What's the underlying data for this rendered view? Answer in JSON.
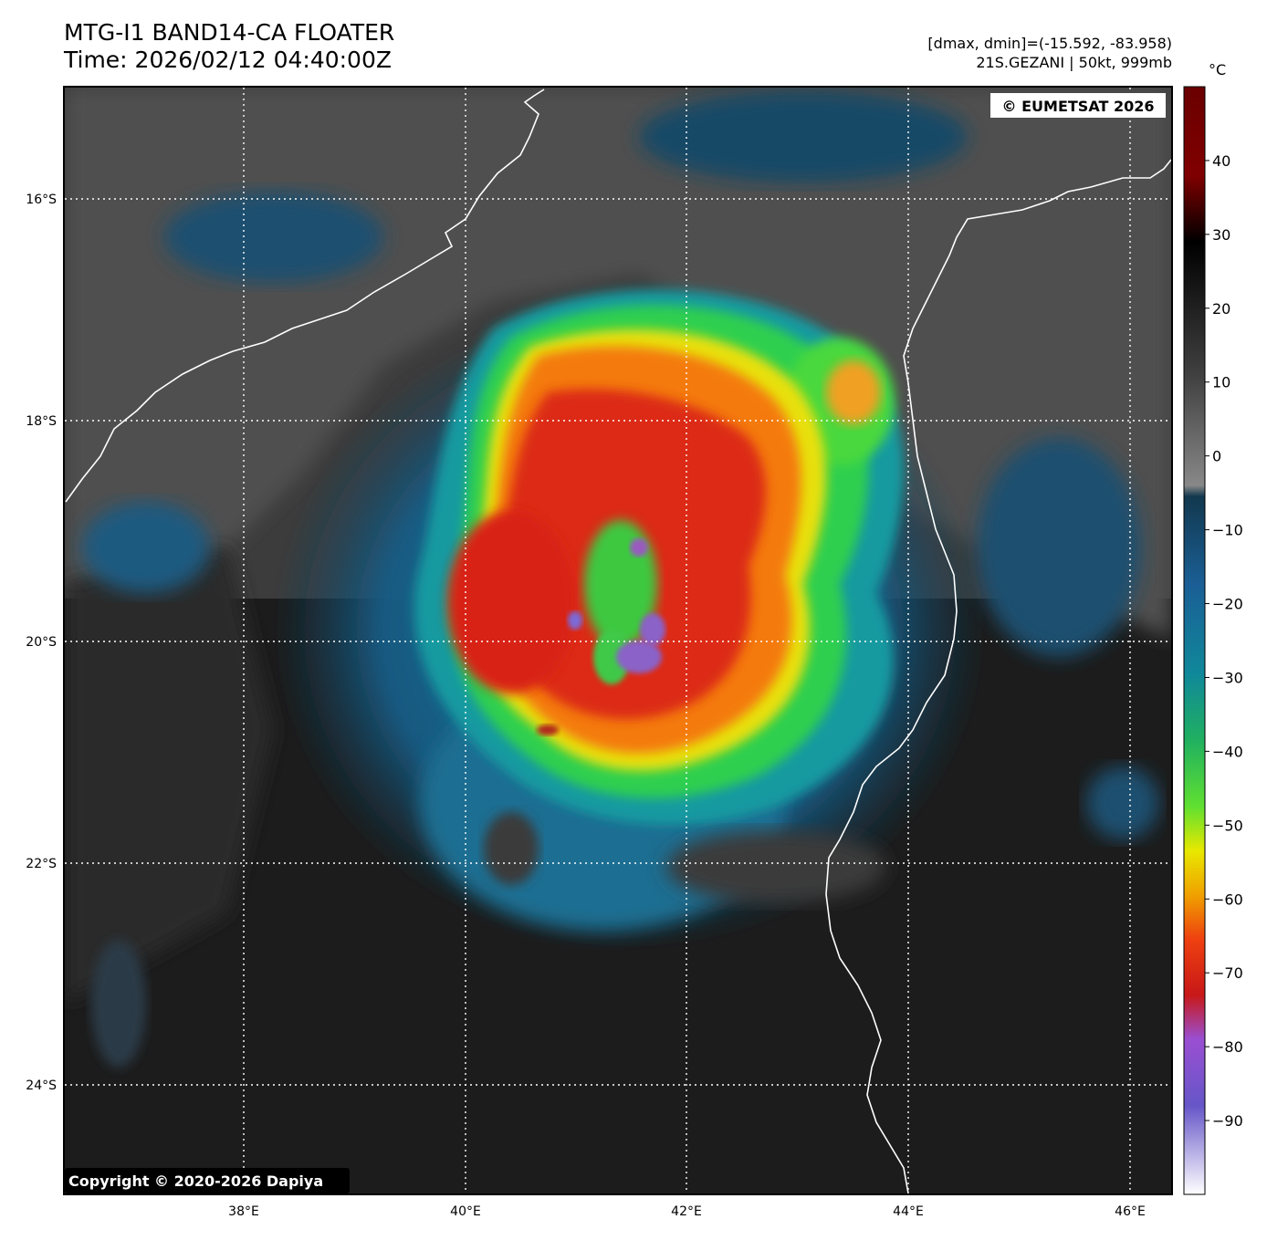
{
  "header": {
    "title_line1": "MTG-I1 BAND14-CA FLOATER",
    "title_line2": "Time: 2026/02/12 04:40:00Z",
    "info_line1": "[dmax, dmin]=(-15.592, -83.958)",
    "info_line2": "21S.GEZANI | 50kt, 999mb"
  },
  "map": {
    "credit_top": "© EUMETSAT 2026",
    "credit_bottom": "Copyright © 2020-2026 Dapiya",
    "lat_labels": [
      "16°S",
      "18°S",
      "20°S",
      "22°S",
      "24°S"
    ],
    "lon_labels": [
      "38°E",
      "40°E",
      "42°E",
      "44°E",
      "46°E"
    ]
  },
  "colorbar": {
    "unit": "°C",
    "ticks": [
      "40",
      "30",
      "20",
      "10",
      "0",
      "−10",
      "−20",
      "−30",
      "−40",
      "−50",
      "−60",
      "−70",
      "−80",
      "−90"
    ],
    "range": [
      -100,
      50
    ]
  }
}
